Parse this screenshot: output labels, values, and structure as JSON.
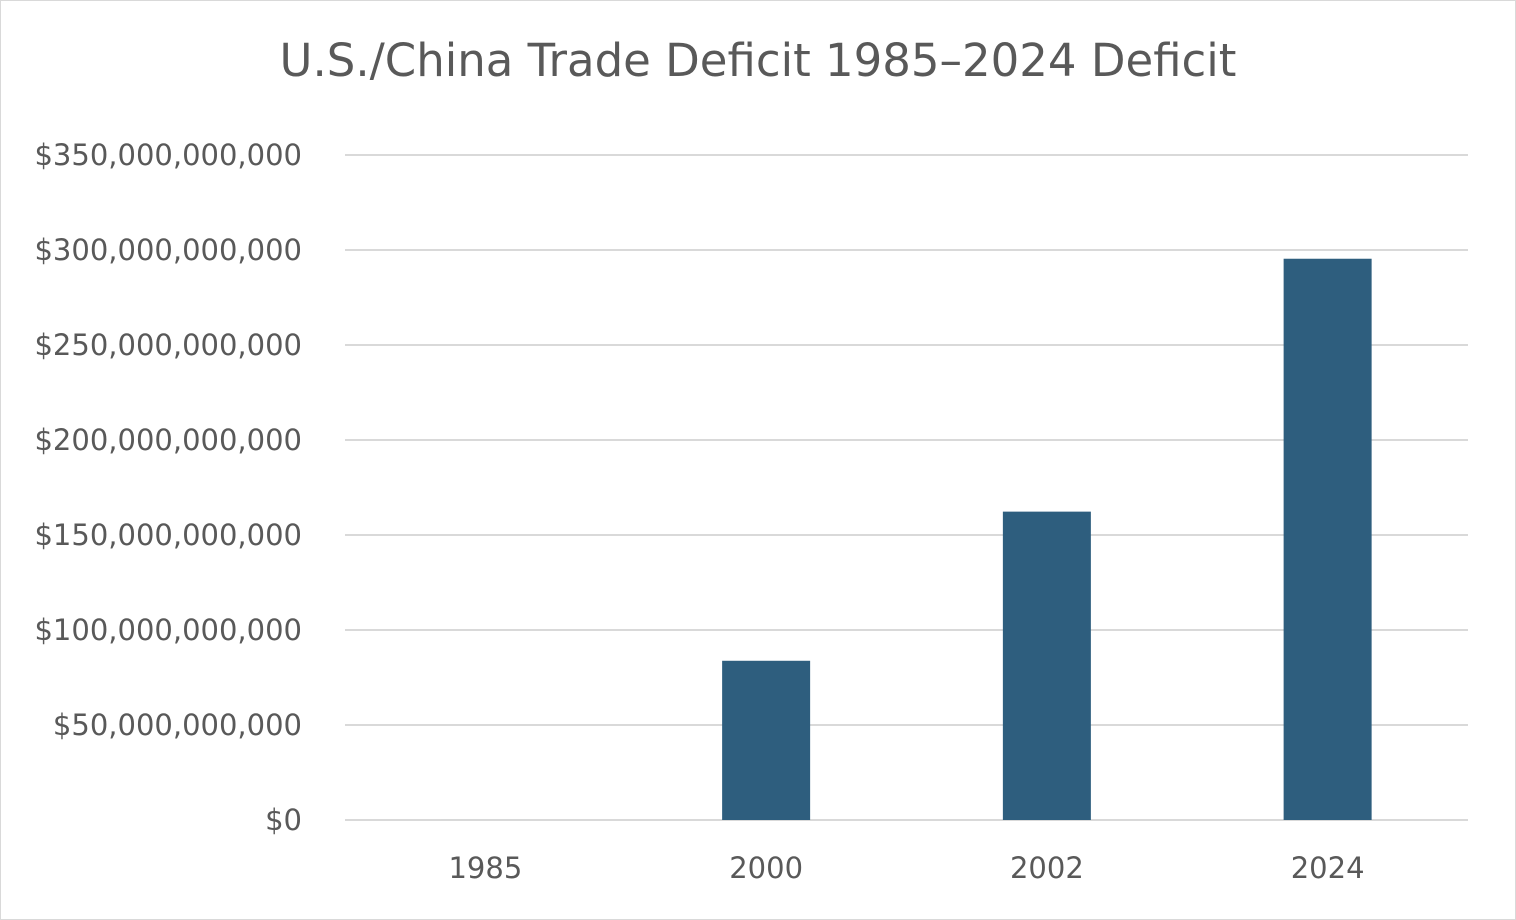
{
  "chart_data": {
    "type": "bar",
    "title": "U.S./China Trade Deficit 1985–2024 Deficit",
    "xlabel": "",
    "ylabel": "",
    "categories": [
      "1985",
      "2000",
      "2002",
      "2024"
    ],
    "series": [
      {
        "values": [
          6000000,
          83800000000,
          162300000000,
          295400000000
        ]
      }
    ],
    "ylim": [
      0,
      350000000000
    ],
    "y_ticks": [
      0,
      50000000000,
      100000000000,
      150000000000,
      200000000000,
      250000000000,
      300000000000,
      350000000000
    ],
    "y_tick_labels": [
      "$0",
      "$50,000,000,000",
      "$100,000,000,000",
      "$150,000,000,000",
      "$200,000,000,000",
      "$250,000,000,000",
      "$300,000,000,000",
      "$350,000,000,000"
    ],
    "grid": true,
    "legend": "none",
    "bar_color": "#2e5e7e",
    "grid_color": "#d9d9d9",
    "text_color": "#595959"
  }
}
